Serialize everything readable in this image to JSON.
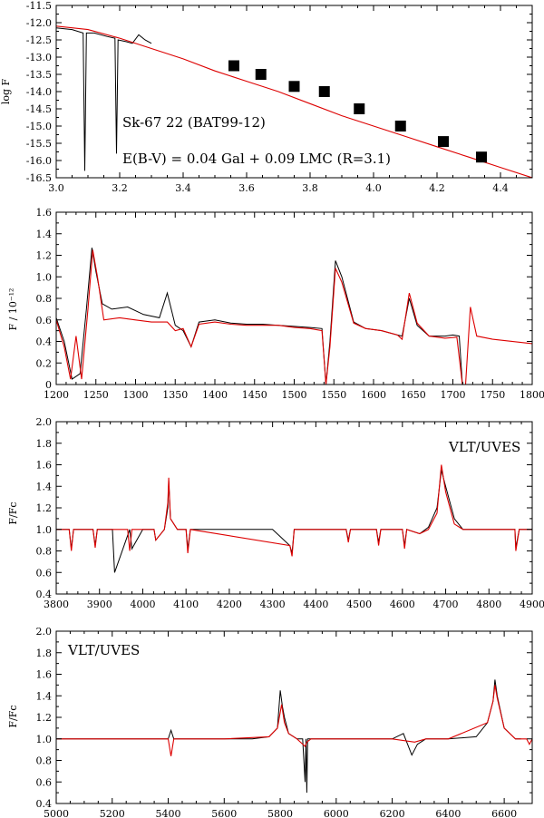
{
  "chart_data": [
    {
      "type": "line",
      "id": "panel-1",
      "title": "",
      "xlabel": "",
      "ylabel": "log F",
      "xlim": [
        3.0,
        4.5
      ],
      "ylim": [
        -16.5,
        -11.5
      ],
      "xticks": [
        3.0,
        3.2,
        3.4,
        3.6,
        3.8,
        4.0,
        4.2,
        4.4
      ],
      "xtick_labels": [
        "3.0",
        "3.2",
        "3.4",
        "3.6",
        "3.8",
        "4.0",
        "4.2",
        "4.4"
      ],
      "yticks": [
        -16.5,
        -16.0,
        -15.5,
        -15.0,
        -14.5,
        -14.0,
        -13.5,
        -13.0,
        -12.5,
        -12.0,
        -11.5
      ],
      "ytick_labels": [
        "-16.5",
        "-16.0",
        "-15.5",
        "-15.0",
        "-14.5",
        "-14.0",
        "-13.5",
        "-13.0",
        "-12.5",
        "-12.0",
        "-11.5"
      ],
      "annotations": [
        "Sk-67 22 (BAT99-12)",
        "E(B-V) = 0.04 Gal + 0.09 LMC (R=3.1)"
      ],
      "series": [
        {
          "color": "#000000",
          "x": [
            3.0,
            3.05,
            3.085,
            3.09,
            3.095,
            3.12,
            3.16,
            3.185,
            3.19,
            3.195,
            3.22,
            3.24,
            3.26,
            3.28,
            3.3
          ],
          "y": [
            -12.15,
            -12.2,
            -12.3,
            -16.3,
            -12.3,
            -12.3,
            -12.4,
            -12.45,
            -15.8,
            -12.5,
            -12.55,
            -12.6,
            -12.35,
            -12.5,
            -12.6
          ]
        },
        {
          "color": "#dd0000",
          "x": [
            3.0,
            3.1,
            3.2,
            3.3,
            3.4,
            3.5,
            3.6,
            3.7,
            3.8,
            3.9,
            4.0,
            4.1,
            4.2,
            4.3,
            4.4,
            4.5
          ],
          "y": [
            -12.1,
            -12.2,
            -12.45,
            -12.75,
            -13.05,
            -13.4,
            -13.7,
            -14.0,
            -14.35,
            -14.7,
            -15.0,
            -15.3,
            -15.6,
            -15.9,
            -16.2,
            -16.5
          ]
        },
        {
          "color": "#000000",
          "marker": "square",
          "x": [
            3.56,
            3.645,
            3.75,
            3.845,
            3.955,
            4.085,
            4.22,
            4.34
          ],
          "y": [
            -13.25,
            -13.5,
            -13.85,
            -14.0,
            -14.5,
            -15.0,
            -15.45,
            -15.9
          ]
        }
      ]
    },
    {
      "type": "line",
      "id": "panel-2",
      "title": "",
      "xlabel": "",
      "ylabel": "F / 10⁻¹²",
      "xlim": [
        1200,
        1800
      ],
      "ylim": [
        0,
        1.6
      ],
      "xticks": [
        1200,
        1250,
        1300,
        1350,
        1400,
        1450,
        1500,
        1550,
        1600,
        1650,
        1700,
        1750,
        1800
      ],
      "xtick_labels": [
        "1200",
        "1250",
        "1300",
        "1350",
        "1400",
        "1450",
        "1500",
        "1550",
        "1600",
        "1650",
        "1700",
        "1750",
        "1800"
      ],
      "yticks": [
        0,
        0.2,
        0.4,
        0.6,
        0.8,
        1.0,
        1.2,
        1.4,
        1.6
      ],
      "ytick_labels": [
        "0",
        "0.2",
        "0.4",
        "0.6",
        "0.8",
        "1.0",
        "1.2",
        "1.4",
        "1.6"
      ],
      "annotations": [],
      "series": [
        {
          "color": "#000000",
          "x": [
            1200,
            1210,
            1220,
            1230,
            1238,
            1245,
            1250,
            1258,
            1270,
            1290,
            1310,
            1330,
            1340,
            1350,
            1360,
            1370,
            1380,
            1400,
            1420,
            1440,
            1460,
            1480,
            1500,
            1520,
            1535,
            1540,
            1545,
            1552,
            1560,
            1575,
            1590,
            1610,
            1630,
            1636,
            1645,
            1655,
            1670,
            1690,
            1700,
            1708,
            1712,
            1716
          ],
          "y": [
            0.62,
            0.4,
            0.05,
            0.1,
            0.7,
            1.27,
            1.05,
            0.75,
            0.7,
            0.72,
            0.65,
            0.62,
            0.85,
            0.55,
            0.5,
            0.35,
            0.58,
            0.6,
            0.57,
            0.56,
            0.56,
            0.55,
            0.54,
            0.53,
            0.52,
            0.0,
            0.4,
            1.15,
            1.0,
            0.58,
            0.52,
            0.5,
            0.46,
            0.45,
            0.8,
            0.55,
            0.45,
            0.45,
            0.46,
            0.45,
            0.0,
            0.0
          ]
        },
        {
          "color": "#dd0000",
          "x": [
            1200,
            1210,
            1218,
            1225,
            1232,
            1240,
            1246,
            1252,
            1260,
            1280,
            1300,
            1320,
            1340,
            1350,
            1360,
            1370,
            1380,
            1400,
            1420,
            1440,
            1460,
            1480,
            1500,
            1520,
            1535,
            1540,
            1545,
            1552,
            1560,
            1575,
            1590,
            1610,
            1630,
            1636,
            1645,
            1655,
            1670,
            1690,
            1705,
            1712,
            1716,
            1722,
            1730,
            1750,
            1800
          ],
          "y": [
            0.6,
            0.35,
            0.05,
            0.45,
            0.05,
            0.7,
            1.25,
            1.0,
            0.6,
            0.62,
            0.6,
            0.58,
            0.58,
            0.5,
            0.52,
            0.35,
            0.56,
            0.58,
            0.56,
            0.55,
            0.55,
            0.55,
            0.53,
            0.52,
            0.5,
            0.0,
            0.35,
            1.08,
            0.95,
            0.57,
            0.52,
            0.5,
            0.46,
            0.42,
            0.85,
            0.57,
            0.45,
            0.43,
            0.44,
            0.0,
            0.0,
            0.72,
            0.45,
            0.42,
            0.38
          ]
        }
      ]
    },
    {
      "type": "line",
      "id": "panel-3",
      "title": "",
      "xlabel": "",
      "ylabel": "F/Fc",
      "xlim": [
        3800,
        4900
      ],
      "ylim": [
        0.4,
        2.0
      ],
      "xticks": [
        3800,
        3900,
        4000,
        4100,
        4200,
        4300,
        4400,
        4500,
        4600,
        4700,
        4800,
        4900
      ],
      "xtick_labels": [
        "3800",
        "3900",
        "4000",
        "4100",
        "4200",
        "4300",
        "4400",
        "4500",
        "4600",
        "4700",
        "4800",
        "4900"
      ],
      "yticks": [
        0.4,
        0.6,
        0.8,
        1.0,
        1.2,
        1.4,
        1.6,
        1.8,
        2.0
      ],
      "ytick_labels": [
        "0.4",
        "0.6",
        "0.8",
        "1.0",
        "1.2",
        "1.4",
        "1.6",
        "1.8",
        "2.0"
      ],
      "annotations": [
        "VLT/UVES"
      ],
      "series": [
        {
          "color": "#000000",
          "x": [
            3800,
            3830,
            3835,
            3840,
            3860,
            3885,
            3890,
            3895,
            3930,
            3935,
            3970,
            3975,
            4000,
            4026,
            4030,
            4050,
            4058,
            4060,
            4064,
            4080,
            4100,
            4104,
            4110,
            4200,
            4230,
            4300,
            4340,
            4345,
            4350,
            4400,
            4470,
            4475,
            4480,
            4540,
            4545,
            4550,
            4600,
            4605,
            4610,
            4640,
            4660,
            4680,
            4690,
            4700,
            4720,
            4740,
            4800,
            4860,
            4862,
            4870,
            4900
          ],
          "y": [
            1.0,
            1.0,
            0.82,
            1.0,
            1.0,
            1.0,
            0.85,
            1.0,
            1.0,
            0.6,
            1.0,
            0.82,
            1.0,
            1.0,
            0.9,
            1.0,
            1.2,
            1.45,
            1.1,
            1.0,
            1.0,
            0.82,
            1.0,
            1.0,
            1.0,
            1.0,
            0.85,
            0.78,
            1.0,
            1.0,
            1.0,
            0.9,
            1.0,
            1.0,
            0.88,
            1.0,
            1.0,
            0.85,
            1.0,
            0.96,
            1.02,
            1.2,
            1.55,
            1.4,
            1.1,
            1.0,
            1.0,
            1.0,
            0.83,
            1.0,
            1.0
          ]
        },
        {
          "color": "#dd0000",
          "x": [
            3800,
            3830,
            3835,
            3840,
            3885,
            3890,
            3895,
            3965,
            3970,
            3975,
            4026,
            4030,
            4050,
            4058,
            4060,
            4064,
            4080,
            4100,
            4104,
            4110,
            4340,
            4345,
            4350,
            4470,
            4475,
            4480,
            4540,
            4545,
            4550,
            4600,
            4605,
            4610,
            4640,
            4660,
            4680,
            4690,
            4700,
            4720,
            4740,
            4860,
            4862,
            4870,
            4900
          ],
          "y": [
            1.0,
            1.0,
            0.8,
            1.0,
            1.0,
            0.83,
            1.0,
            1.0,
            0.8,
            1.0,
            1.0,
            0.9,
            1.0,
            1.25,
            1.48,
            1.1,
            1.0,
            1.0,
            0.78,
            1.0,
            0.85,
            0.75,
            1.0,
            1.0,
            0.88,
            1.0,
            1.0,
            0.85,
            1.0,
            1.0,
            0.82,
            1.0,
            0.96,
            1.0,
            1.15,
            1.6,
            1.35,
            1.05,
            1.0,
            1.0,
            0.8,
            1.0,
            1.0
          ]
        }
      ]
    },
    {
      "type": "line",
      "id": "panel-4",
      "title": "",
      "xlabel": "",
      "ylabel": "F/Fc",
      "xlim": [
        5000,
        6700
      ],
      "ylim": [
        0.4,
        2.0
      ],
      "xticks": [
        5000,
        5200,
        5400,
        5600,
        5800,
        6000,
        6200,
        6400,
        6600
      ],
      "xtick_labels": [
        "5000",
        "5200",
        "5400",
        "5600",
        "5800",
        "6000",
        "6200",
        "6400",
        "6600"
      ],
      "yticks": [
        0.4,
        0.6,
        0.8,
        1.0,
        1.2,
        1.4,
        1.6,
        1.8,
        2.0
      ],
      "ytick_labels": [
        "0.4",
        "0.6",
        "0.8",
        "1.0",
        "1.2",
        "1.4",
        "1.6",
        "1.8",
        "2.0"
      ],
      "annotations": [
        "VLT/UVES"
      ],
      "series": [
        {
          "color": "#000000",
          "x": [
            5000,
            5200,
            5400,
            5410,
            5420,
            5440,
            5600,
            5700,
            5760,
            5790,
            5800,
            5808,
            5815,
            5830,
            5860,
            5880,
            5889,
            5892,
            5895,
            5898,
            5910,
            6000,
            6200,
            6240,
            6270,
            6290,
            6320,
            6400,
            6500,
            6540,
            6560,
            6567,
            6575,
            6600,
            6640,
            6660
          ],
          "y": [
            1.0,
            1.0,
            1.0,
            1.08,
            1.0,
            1.0,
            1.0,
            1.0,
            1.02,
            1.1,
            1.45,
            1.3,
            1.2,
            1.05,
            1.0,
            1.0,
            0.6,
            1.0,
            0.5,
            1.0,
            1.0,
            1.0,
            1.0,
            1.05,
            0.85,
            0.95,
            1.0,
            1.0,
            1.02,
            1.15,
            1.35,
            1.55,
            1.4,
            1.1,
            1.0,
            1.0
          ]
        },
        {
          "color": "#dd0000",
          "x": [
            5000,
            5200,
            5400,
            5410,
            5420,
            5600,
            5760,
            5790,
            5805,
            5815,
            5830,
            5860,
            5889,
            5895,
            5910,
            6200,
            6280,
            6320,
            6400,
            6540,
            6560,
            6567,
            6575,
            6600,
            6640,
            6680,
            6690,
            6700
          ],
          "y": [
            1.0,
            1.0,
            1.0,
            0.84,
            1.0,
            1.0,
            1.02,
            1.1,
            1.32,
            1.15,
            1.05,
            1.0,
            0.93,
            0.97,
            1.0,
            1.0,
            0.97,
            1.0,
            1.0,
            1.15,
            1.35,
            1.5,
            1.38,
            1.1,
            1.0,
            1.0,
            0.95,
            1.0
          ]
        }
      ]
    }
  ]
}
